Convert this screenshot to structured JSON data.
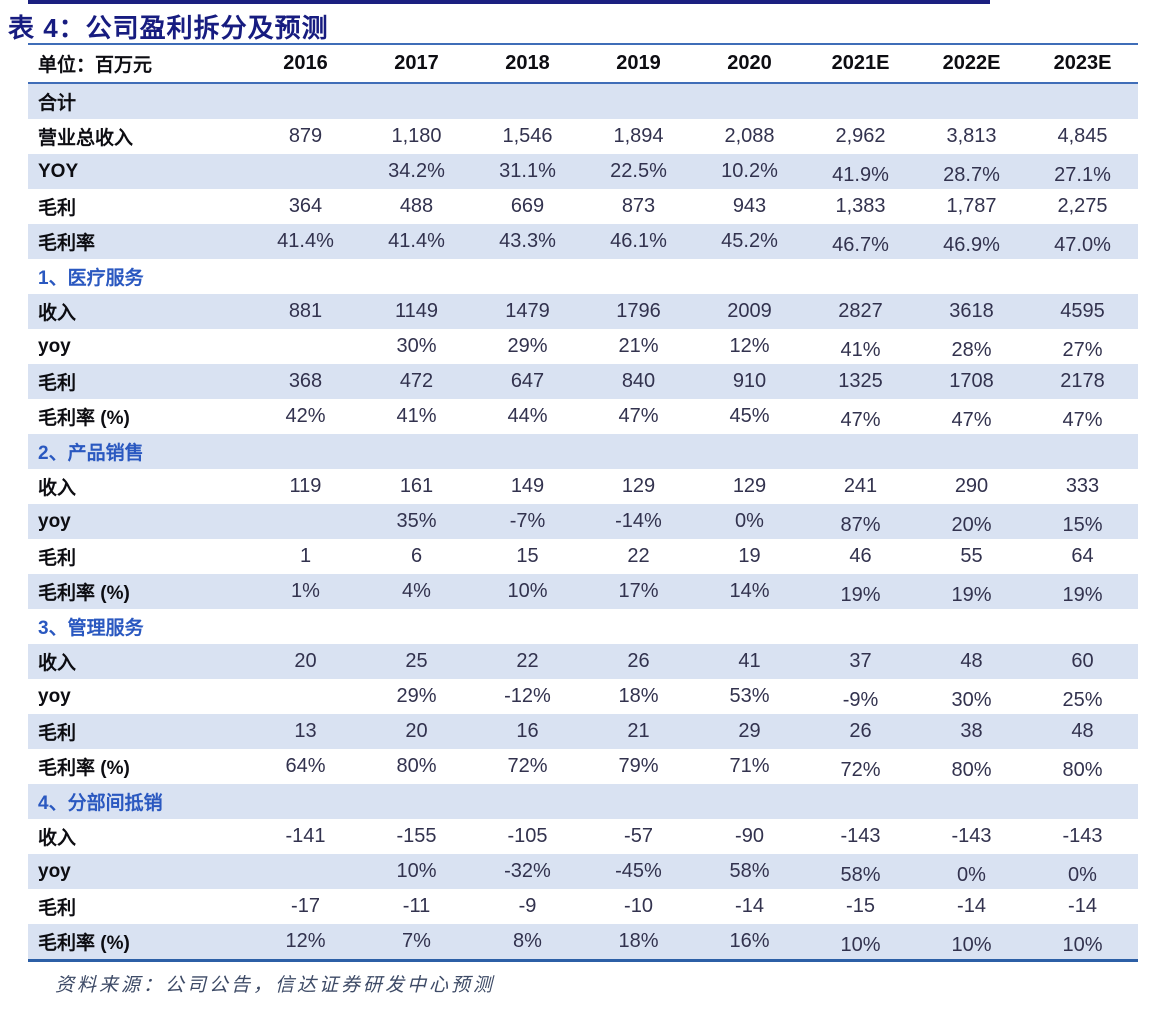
{
  "title": "表 4：公司盈利拆分及预测",
  "footer": {
    "source": "资料来源：公司公告，信达证券研发中心预测"
  },
  "colors": {
    "title_navy": "#171c80",
    "top_bar_navy": "#1b2080",
    "rule_blue": "#3f6db8",
    "bottom_rule_blue": "#2c5fa6",
    "row_shade_blue": "#d9e2f2",
    "section_label_blue": "#2a58c0",
    "number_text": "#32324e"
  },
  "table": {
    "unit_label": "单位：百万元",
    "years": [
      "2016",
      "2017",
      "2018",
      "2019",
      "2020",
      "2021E",
      "2022E",
      "2023E"
    ],
    "rows": [
      {
        "label": "合计",
        "type": "total",
        "values": [
          "",
          "",
          "",
          "",
          "",
          "",
          "",
          ""
        ]
      },
      {
        "label": "营业总收入",
        "type": "data",
        "values": [
          "879",
          "1,180",
          "1,546",
          "1,894",
          "2,088",
          "2,962",
          "3,813",
          "4,845"
        ]
      },
      {
        "label": "YOY",
        "type": "data",
        "values": [
          "",
          "34.2%",
          "31.1%",
          "22.5%",
          "10.2%",
          "41.9%",
          "28.7%",
          "27.1%"
        ]
      },
      {
        "label": "毛利",
        "type": "data",
        "values": [
          "364",
          "488",
          "669",
          "873",
          "943",
          "1,383",
          "1,787",
          "2,275"
        ]
      },
      {
        "label": "毛利率",
        "type": "data",
        "values": [
          "41.4%",
          "41.4%",
          "43.3%",
          "46.1%",
          "45.2%",
          "46.7%",
          "46.9%",
          "47.0%"
        ]
      },
      {
        "label": "1、医疗服务",
        "type": "section",
        "values": [
          "",
          "",
          "",
          "",
          "",
          "",
          "",
          ""
        ]
      },
      {
        "label": "收入",
        "type": "data",
        "values": [
          "881",
          "1149",
          "1479",
          "1796",
          "2009",
          "2827",
          "3618",
          "4595"
        ]
      },
      {
        "label": "yoy",
        "type": "data",
        "values": [
          "",
          "30%",
          "29%",
          "21%",
          "12%",
          "41%",
          "28%",
          "27%"
        ]
      },
      {
        "label": "毛利",
        "type": "data",
        "values": [
          "368",
          "472",
          "647",
          "840",
          "910",
          "1325",
          "1708",
          "2178"
        ]
      },
      {
        "label": "毛利率 (%)",
        "type": "data",
        "values": [
          "42%",
          "41%",
          "44%",
          "47%",
          "45%",
          "47%",
          "47%",
          "47%"
        ]
      },
      {
        "label": "2、产品销售",
        "type": "section",
        "values": [
          "",
          "",
          "",
          "",
          "",
          "",
          "",
          ""
        ]
      },
      {
        "label": "收入",
        "type": "data",
        "values": [
          "119",
          "161",
          "149",
          "129",
          "129",
          "241",
          "290",
          "333"
        ]
      },
      {
        "label": "yoy",
        "type": "data",
        "values": [
          "",
          "35%",
          "-7%",
          "-14%",
          "0%",
          "87%",
          "20%",
          "15%"
        ]
      },
      {
        "label": "毛利",
        "type": "data",
        "values": [
          "1",
          "6",
          "15",
          "22",
          "19",
          "46",
          "55",
          "64"
        ]
      },
      {
        "label": "毛利率 (%)",
        "type": "data",
        "values": [
          "1%",
          "4%",
          "10%",
          "17%",
          "14%",
          "19%",
          "19%",
          "19%"
        ]
      },
      {
        "label": "3、管理服务",
        "type": "section",
        "values": [
          "",
          "",
          "",
          "",
          "",
          "",
          "",
          ""
        ]
      },
      {
        "label": "收入",
        "type": "data",
        "values": [
          "20",
          "25",
          "22",
          "26",
          "41",
          "37",
          "48",
          "60"
        ]
      },
      {
        "label": "yoy",
        "type": "data",
        "values": [
          "",
          "29%",
          "-12%",
          "18%",
          "53%",
          "-9%",
          "30%",
          "25%"
        ]
      },
      {
        "label": "毛利",
        "type": "data",
        "values": [
          "13",
          "20",
          "16",
          "21",
          "29",
          "26",
          "38",
          "48"
        ]
      },
      {
        "label": "毛利率 (%)",
        "type": "data",
        "values": [
          "64%",
          "80%",
          "72%",
          "79%",
          "71%",
          "72%",
          "80%",
          "80%"
        ]
      },
      {
        "label": "4、分部间抵销",
        "type": "section",
        "values": [
          "",
          "",
          "",
          "",
          "",
          "",
          "",
          ""
        ]
      },
      {
        "label": "收入",
        "type": "data",
        "values": [
          "-141",
          "-155",
          "-105",
          "-57",
          "-90",
          "-143",
          "-143",
          "-143"
        ]
      },
      {
        "label": "yoy",
        "type": "data",
        "values": [
          "",
          "10%",
          "-32%",
          "-45%",
          "58%",
          "58%",
          "0%",
          "0%"
        ]
      },
      {
        "label": "毛利",
        "type": "data",
        "values": [
          "-17",
          "-11",
          "-9",
          "-10",
          "-14",
          "-15",
          "-14",
          "-14"
        ]
      },
      {
        "label": "毛利率 (%)",
        "type": "data",
        "values": [
          "12%",
          "7%",
          "8%",
          "18%",
          "16%",
          "10%",
          "10%",
          "10%"
        ]
      }
    ]
  }
}
